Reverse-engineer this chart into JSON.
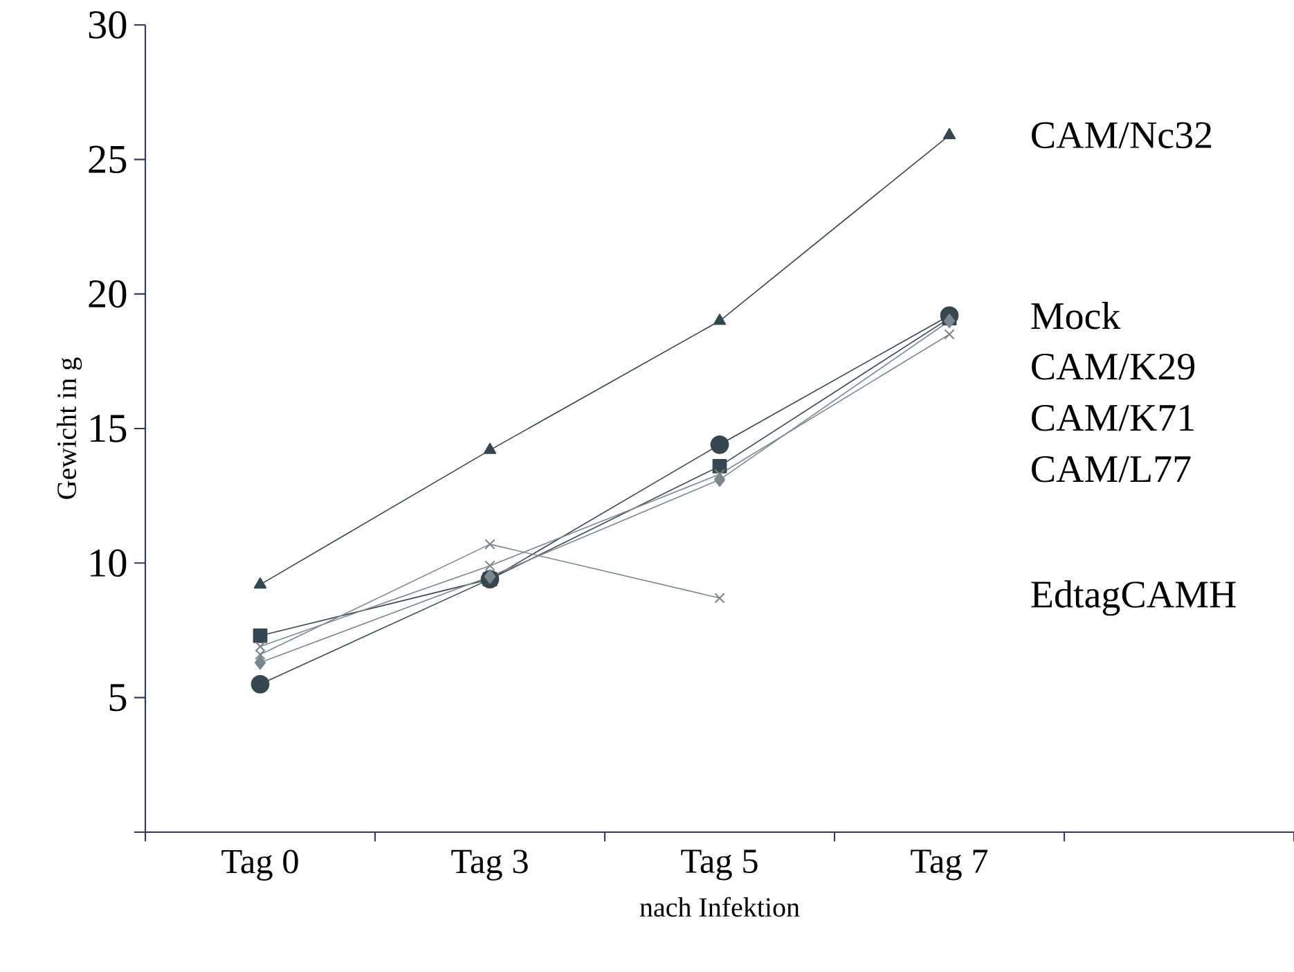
{
  "chart_data": {
    "type": "line",
    "xlabel": "nach Infektion",
    "ylabel": "Gewicht in g",
    "categories": [
      "Tag 0",
      "Tag 3",
      "Tag 5",
      "Tag 7",
      null
    ],
    "ylim": [
      0,
      30
    ],
    "yticks": [
      {
        "value": 0,
        "label": null
      },
      5,
      10,
      15,
      20,
      25,
      30
    ],
    "grid": false,
    "legend": false,
    "series": [
      {
        "name": "CAM/Nc32",
        "color": "#37474f",
        "marker": "triangle",
        "values": [
          9.2,
          14.2,
          19.0,
          25.9,
          null
        ]
      },
      {
        "name": "Mock",
        "color": "#37474f",
        "marker": "circle",
        "values": [
          5.5,
          9.4,
          14.4,
          19.2,
          null
        ]
      },
      {
        "name": "CAM/K29",
        "color": "#37474f",
        "marker": "square",
        "values": [
          7.3,
          9.4,
          13.6,
          19.1,
          null
        ]
      },
      {
        "name": "CAM/K71",
        "color": "#7b878d",
        "marker": "diamond",
        "values": [
          6.3,
          9.5,
          13.1,
          19.0,
          null
        ]
      },
      {
        "name": "CAM/L77",
        "color": "#7b878d",
        "marker": "cross",
        "values": [
          6.9,
          9.9,
          13.3,
          18.5,
          null
        ]
      },
      {
        "name": "EdtagCAMH",
        "color": "#7b878d",
        "marker": "cross",
        "values": [
          6.6,
          10.7,
          8.7,
          null,
          null
        ]
      }
    ]
  }
}
